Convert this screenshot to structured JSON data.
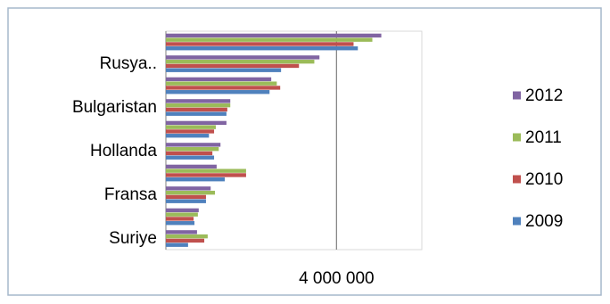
{
  "chart_data": {
    "type": "hbar",
    "categories": [
      null,
      "Rusya..",
      null,
      "Bulgaristan",
      null,
      "Hollanda",
      null,
      "Fransa",
      null,
      "Suriye"
    ],
    "series": [
      {
        "name": "2012",
        "color": "#8064a2",
        "values": [
          5050000,
          3600000,
          2470000,
          1510000,
          1420000,
          1280000,
          1190000,
          1050000,
          770000,
          730000
        ]
      },
      {
        "name": "2011",
        "color": "#9bbb59",
        "values": [
          4840000,
          3480000,
          2600000,
          1510000,
          1170000,
          1240000,
          1880000,
          1150000,
          750000,
          980000
        ]
      },
      {
        "name": "2010",
        "color": "#c0504d",
        "values": [
          4400000,
          3120000,
          2680000,
          1440000,
          1130000,
          1090000,
          1880000,
          940000,
          650000,
          900000
        ]
      },
      {
        "name": "2009",
        "color": "#4f81bd",
        "values": [
          4500000,
          2700000,
          2430000,
          1420000,
          1010000,
          1130000,
          1380000,
          940000,
          670000,
          520000
        ]
      }
    ],
    "xlim": [
      0,
      6000000
    ],
    "xticks": [
      {
        "value": 4000000,
        "label": "4 000 000"
      }
    ],
    "grid": true,
    "legend": "right"
  }
}
